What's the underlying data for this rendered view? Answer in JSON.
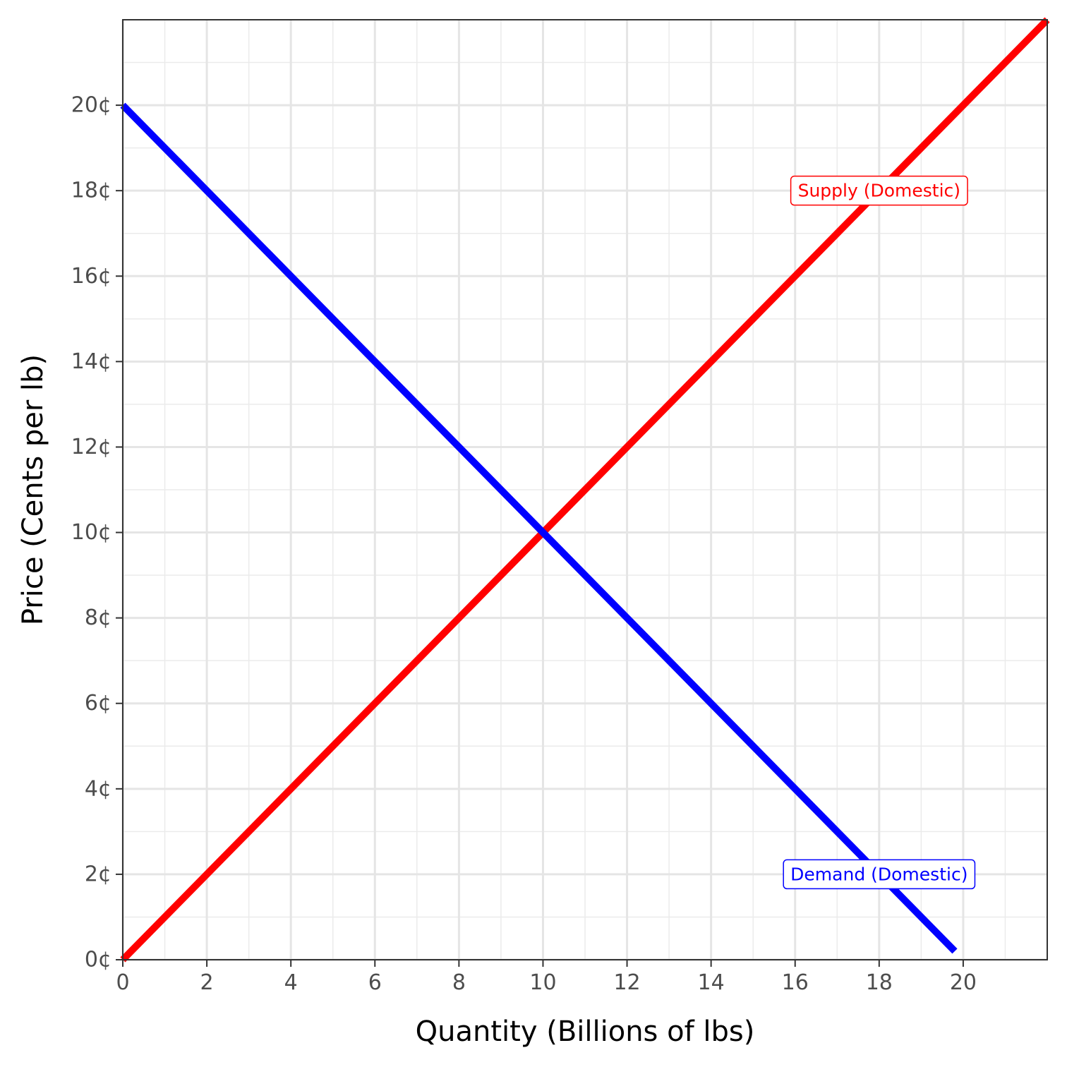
{
  "chart_data": {
    "type": "line",
    "title": "",
    "xlabel": "Quantity (Billions of lbs)",
    "ylabel": "Price (Cents per lb)",
    "xlim": [
      0,
      22
    ],
    "ylim": [
      0,
      22
    ],
    "x_ticks": [
      0,
      2,
      4,
      6,
      8,
      10,
      12,
      14,
      16,
      18,
      20
    ],
    "y_ticks": [
      0,
      2,
      4,
      6,
      8,
      10,
      12,
      14,
      16,
      18,
      20
    ],
    "y_tick_suffix": "¢",
    "grid": true,
    "minor_grid": true,
    "series": [
      {
        "name": "Supply (Domestic)",
        "color": "#ff0000",
        "x": [
          0,
          22
        ],
        "y": [
          0,
          22
        ]
      },
      {
        "name": "Demand (Domestic)",
        "color": "#0000ff",
        "x": [
          0,
          19.8
        ],
        "y": [
          20,
          0.2
        ]
      }
    ],
    "annotations": [
      {
        "text": "Supply (Domestic)",
        "x": 18,
        "y": 18,
        "color": "#ff0000"
      },
      {
        "text": "Demand (Domestic)",
        "x": 18,
        "y": 2,
        "color": "#0000ff"
      }
    ]
  }
}
